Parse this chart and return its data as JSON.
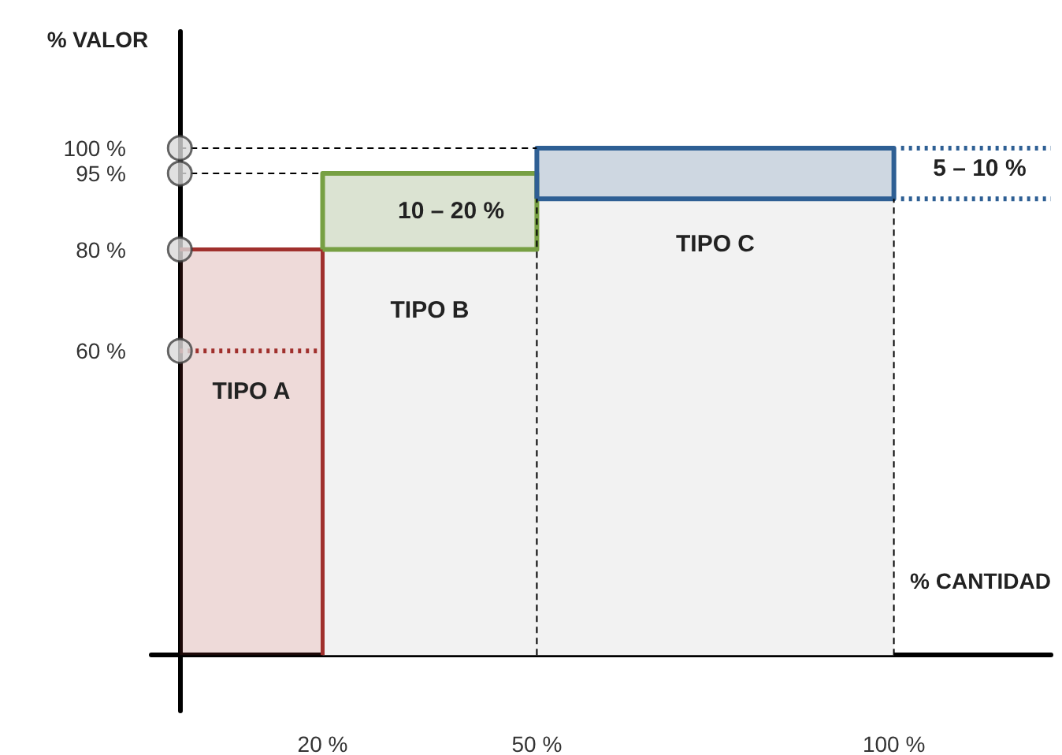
{
  "chart_data": {
    "type": "area",
    "xlabel": "% CANTIDAD",
    "ylabel": "% VALOR",
    "xlim": [
      -4,
      122
    ],
    "ylim": [
      -11,
      123
    ],
    "xticks": [
      {
        "value": 20,
        "label": "20 %"
      },
      {
        "value": 50,
        "label": "50 %"
      },
      {
        "value": 100,
        "label": "100 %"
      }
    ],
    "yticks": [
      {
        "value": 60,
        "label": "60 %"
      },
      {
        "value": 80,
        "label": "80 %"
      },
      {
        "value": 95,
        "label": "95 %"
      },
      {
        "value": 100,
        "label": "100 %"
      }
    ],
    "grid": false,
    "series": [
      {
        "x": [
          20,
          50
        ],
        "values": [
          95,
          95
        ],
        "color": "#f2f2f2"
      },
      {
        "x": [
          50,
          100
        ],
        "values": [
          100,
          100
        ],
        "color": "#f2f2f2"
      },
      {
        "x": [
          0,
          20,
          20
        ],
        "values": [
          80,
          80,
          0
        ],
        "color": "#a0302d"
      },
      {
        "type": "area",
        "x": [
          20,
          20,
          50,
          50,
          20
        ],
        "values": [
          80,
          95,
          95,
          80,
          80
        ],
        "color": "#77a043"
      },
      {
        "type": "area",
        "x": [
          50,
          50,
          100,
          100,
          50
        ],
        "values": [
          90,
          100,
          100,
          90,
          90
        ],
        "color": "#2e5f94"
      },
      {
        "type": "line",
        "x": [
          0,
          20
        ],
        "values": [
          60,
          60
        ],
        "color": "#a0302d",
        "line_style": "dotted"
      },
      {
        "type": "line",
        "x": [
          101,
          122
        ],
        "values": [
          100,
          100
        ],
        "color": "#2e5f94",
        "line_style": "dotted"
      },
      {
        "type": "line",
        "x": [
          101,
          122
        ],
        "values": [
          90,
          90
        ],
        "color": "#2e5f94",
        "line_style": "dotted"
      },
      {
        "type": "line",
        "x": [
          0,
          50
        ],
        "values": [
          100,
          100
        ],
        "color": "#000000",
        "line_style": "dashed"
      },
      {
        "type": "line",
        "x": [
          0,
          20
        ],
        "values": [
          95,
          95
        ],
        "color": "#000000",
        "line_style": "dashed"
      },
      {
        "type": "line",
        "x": [
          50,
          50
        ],
        "values": [
          0,
          90
        ],
        "color": "#000000",
        "line_style": "dashed"
      },
      {
        "type": "line",
        "x": [
          100,
          100
        ],
        "values": [
          0,
          90
        ],
        "color": "#000000",
        "line_style": "dashed"
      },
      {
        "type": "scatter",
        "x": [
          0,
          0,
          0,
          0
        ],
        "values": [
          60,
          80,
          95,
          100
        ],
        "color": "#d9d9d9",
        "marker": "circle"
      }
    ],
    "annotations": [
      "TIPO A",
      "TIPO B",
      "TIPO C",
      "10 – 20 %",
      "5 – 10 %"
    ]
  }
}
